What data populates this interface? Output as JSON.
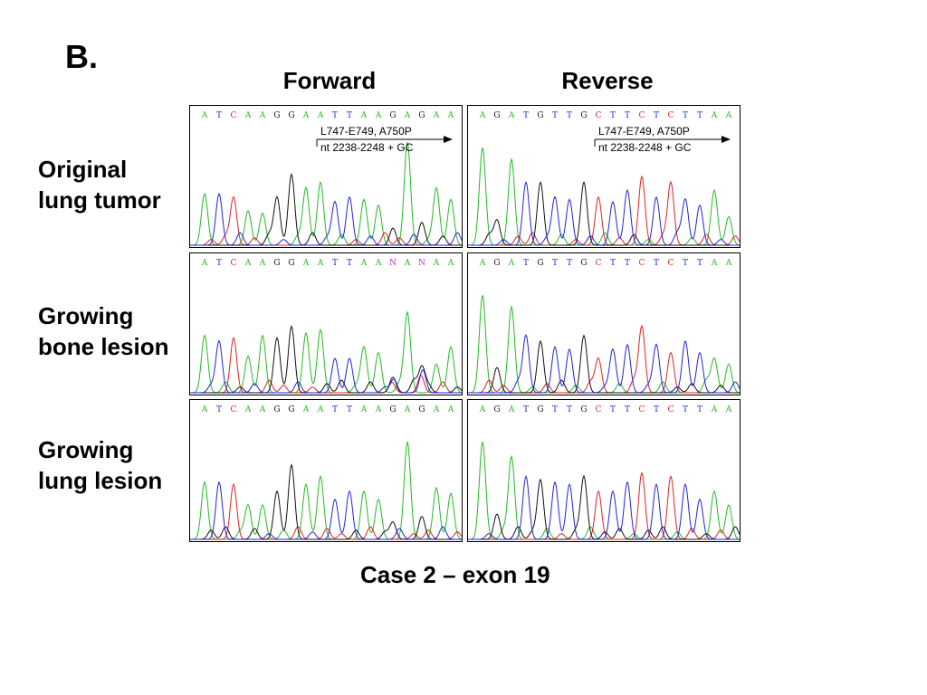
{
  "panel_label": "B.",
  "columns": [
    "Forward",
    "Reverse"
  ],
  "rows": [
    {
      "line1": "Original",
      "line2": "lung tumor"
    },
    {
      "line1": "Growing",
      "line2": "bone lesion"
    },
    {
      "line1": "Growing",
      "line2": "lung lesion"
    }
  ],
  "caption": "Case 2 – exon 19",
  "annotation": {
    "line1": "L747-E749, A750P",
    "line2": "nt 2238-2248 + GC"
  },
  "base_colors": {
    "A": "#22bb22",
    "C": "#dd2222",
    "G": "#111111",
    "T": "#2222dd",
    "N": "#cc22cc"
  },
  "traces": [
    {
      "id": "fwd-original",
      "seq": [
        "A",
        "T",
        "C",
        "A",
        "A",
        "G",
        "G",
        "A",
        "A",
        "T",
        "T",
        "A",
        "A",
        "G",
        "A",
        "G",
        "A",
        "A"
      ],
      "annotated": true
    },
    {
      "id": "rev-original",
      "seq": [
        "A",
        "G",
        "A",
        "T",
        "G",
        "T",
        "T",
        "G",
        "C",
        "T",
        "T",
        "C",
        "T",
        "C",
        "T",
        "T",
        "A",
        "A"
      ],
      "annotated": true
    },
    {
      "id": "fwd-bone",
      "seq": [
        "A",
        "T",
        "C",
        "A",
        "A",
        "G",
        "G",
        "A",
        "A",
        "T",
        "T",
        "A",
        "A",
        "N",
        "A",
        "N",
        "A",
        "A"
      ],
      "annotated": false
    },
    {
      "id": "rev-bone",
      "seq": [
        "A",
        "G",
        "A",
        "T",
        "G",
        "T",
        "T",
        "G",
        "C",
        "T",
        "T",
        "C",
        "T",
        "C",
        "T",
        "T",
        "A",
        "A"
      ],
      "annotated": false
    },
    {
      "id": "fwd-lung",
      "seq": [
        "A",
        "T",
        "C",
        "A",
        "A",
        "G",
        "G",
        "A",
        "A",
        "T",
        "T",
        "A",
        "A",
        "G",
        "A",
        "G",
        "A",
        "A"
      ],
      "annotated": false
    },
    {
      "id": "rev-lung",
      "seq": [
        "A",
        "G",
        "A",
        "T",
        "G",
        "T",
        "T",
        "G",
        "C",
        "T",
        "T",
        "C",
        "T",
        "C",
        "T",
        "T",
        "A",
        "A"
      ],
      "annotated": false
    }
  ]
}
